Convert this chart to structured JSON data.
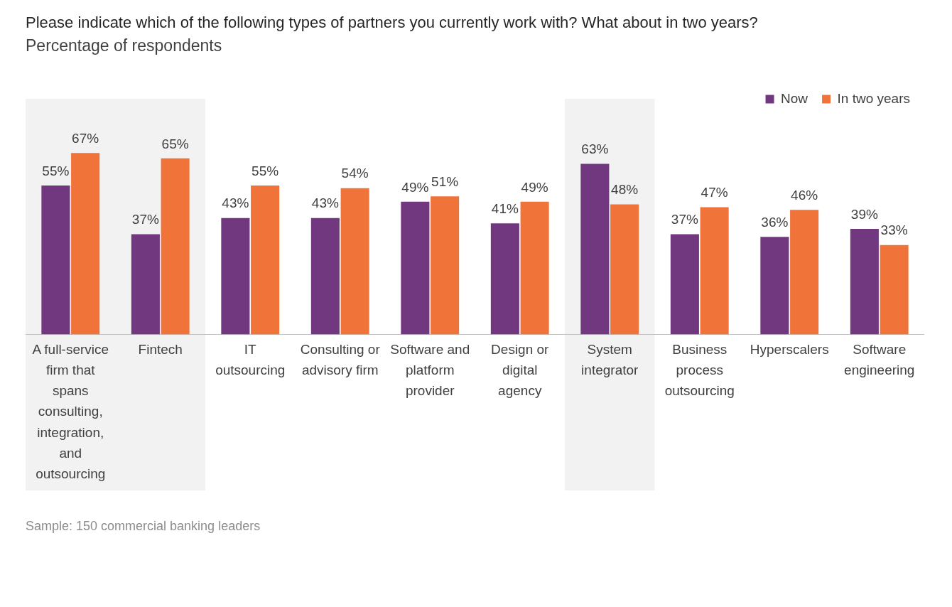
{
  "chart_data": {
    "type": "bar",
    "title": "Please indicate which of the following types of partners you currently work with? What about in two years?",
    "subtitle": "Percentage of respondents",
    "categories": [
      "A full-service firm that spans consulting, integration, and outsourcing",
      "Fintech",
      "IT outsourcing",
      "Consulting or advisory firm",
      "Software and platform provider",
      "Design or digital agency",
      "System integrator",
      "Business process outsourcing",
      "Hyperscalers",
      "Software engineering"
    ],
    "series": [
      {
        "name": "Now",
        "color": "#72387f",
        "values": [
          55,
          37,
          43,
          43,
          49,
          41,
          63,
          37,
          36,
          39
        ],
        "value_labels": [
          "55%",
          "37%",
          "43%",
          "43%",
          "49%",
          "41%",
          "63%",
          "37%",
          "36%",
          "39%"
        ]
      },
      {
        "name": "In two years",
        "color": "#f0733a",
        "values": [
          67,
          65,
          55,
          54,
          51,
          49,
          48,
          47,
          46,
          33
        ],
        "value_labels": [
          "67%",
          "65%",
          "55%",
          "54%",
          "51%",
          "49%",
          "48%",
          "47%",
          "46%",
          "33%"
        ]
      }
    ],
    "bands": [
      {
        "axis": "x",
        "from": "A full-service firm that spans consulting, integration, and outsourcing",
        "to": "Fintech",
        "color": "#f2f2f2"
      },
      {
        "axis": "x",
        "from": "System integrator",
        "to": "System integrator",
        "color": "#f2f2f2"
      }
    ],
    "legend": "top right",
    "grid": false,
    "annotations": [
      "Sample: 150 commercial banking leaders"
    ]
  }
}
